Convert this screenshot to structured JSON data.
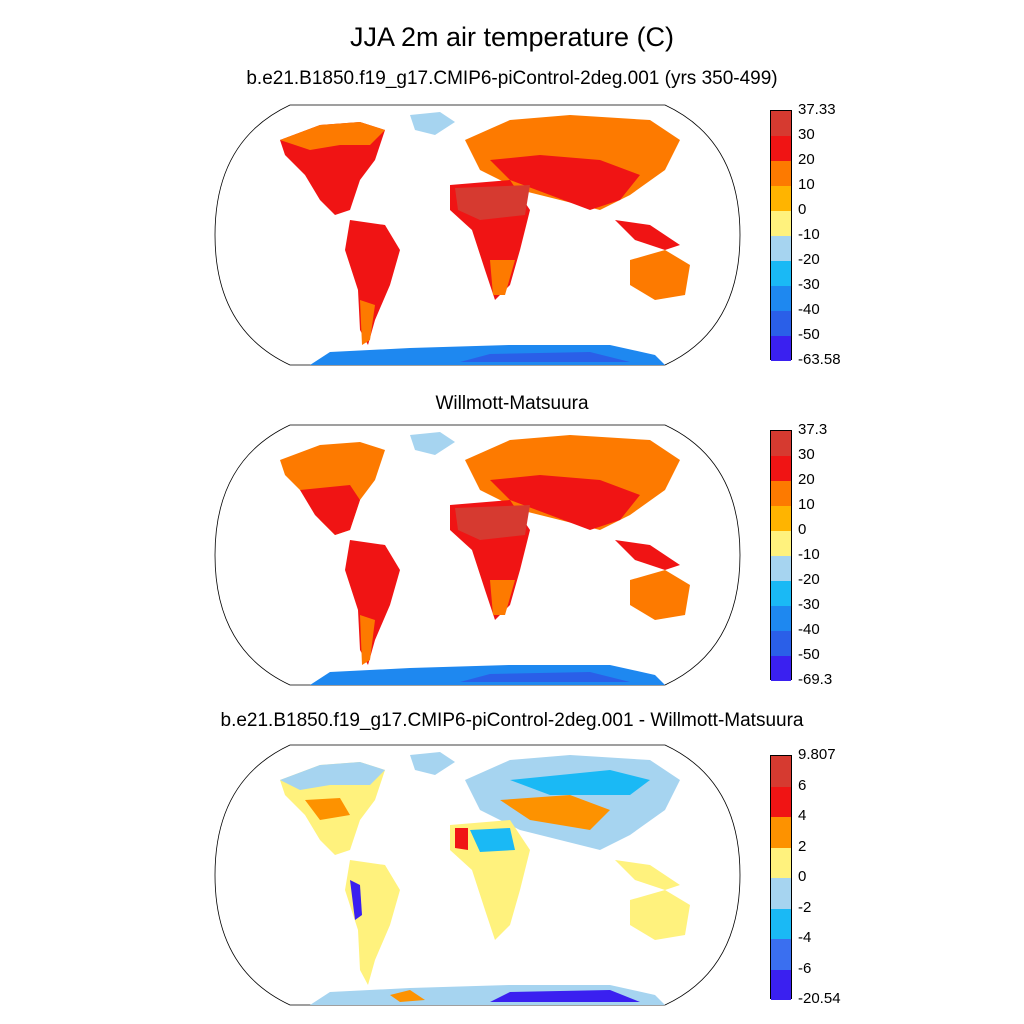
{
  "title": "JJA 2m air temperature (C)",
  "panels": [
    {
      "title": "b.e21.B1850.f19_g17.CMIP6-piControl-2deg.001 (yrs 350-499)",
      "colorbar": {
        "labels": [
          "37.33",
          "30",
          "20",
          "10",
          "0",
          "-10",
          "-20",
          "-30",
          "-40",
          "-50",
          "-63.58"
        ],
        "colors": [
          "#d63a30",
          "#f01414",
          "#fd7a00",
          "#ffb400",
          "#fff27d",
          "#a6d4f0",
          "#1ab9f5",
          "#1e88f0",
          "#2a5fe8",
          "#3a20f0"
        ]
      }
    },
    {
      "title": "Willmott-Matsuura",
      "colorbar": {
        "labels": [
          "37.3",
          "30",
          "20",
          "10",
          "0",
          "-10",
          "-20",
          "-30",
          "-40",
          "-50",
          "-69.3"
        ],
        "colors": [
          "#d63a30",
          "#f01414",
          "#fd7a00",
          "#ffb400",
          "#fff27d",
          "#a6d4f0",
          "#1ab9f5",
          "#1e88f0",
          "#2a5fe8",
          "#3a20f0"
        ]
      }
    },
    {
      "title": "b.e21.B1850.f19_g17.CMIP6-piControl-2deg.001 - Willmott-Matsuura",
      "colorbar": {
        "labels": [
          "9.807",
          "6",
          "4",
          "2",
          "0",
          "-2",
          "-4",
          "-6",
          "-20.54"
        ],
        "colors": [
          "#d63a30",
          "#f01414",
          "#fd9200",
          "#fff27d",
          "#a6d4f0",
          "#1ab9f5",
          "#3a6ff0",
          "#3a20f0"
        ]
      }
    }
  ]
}
